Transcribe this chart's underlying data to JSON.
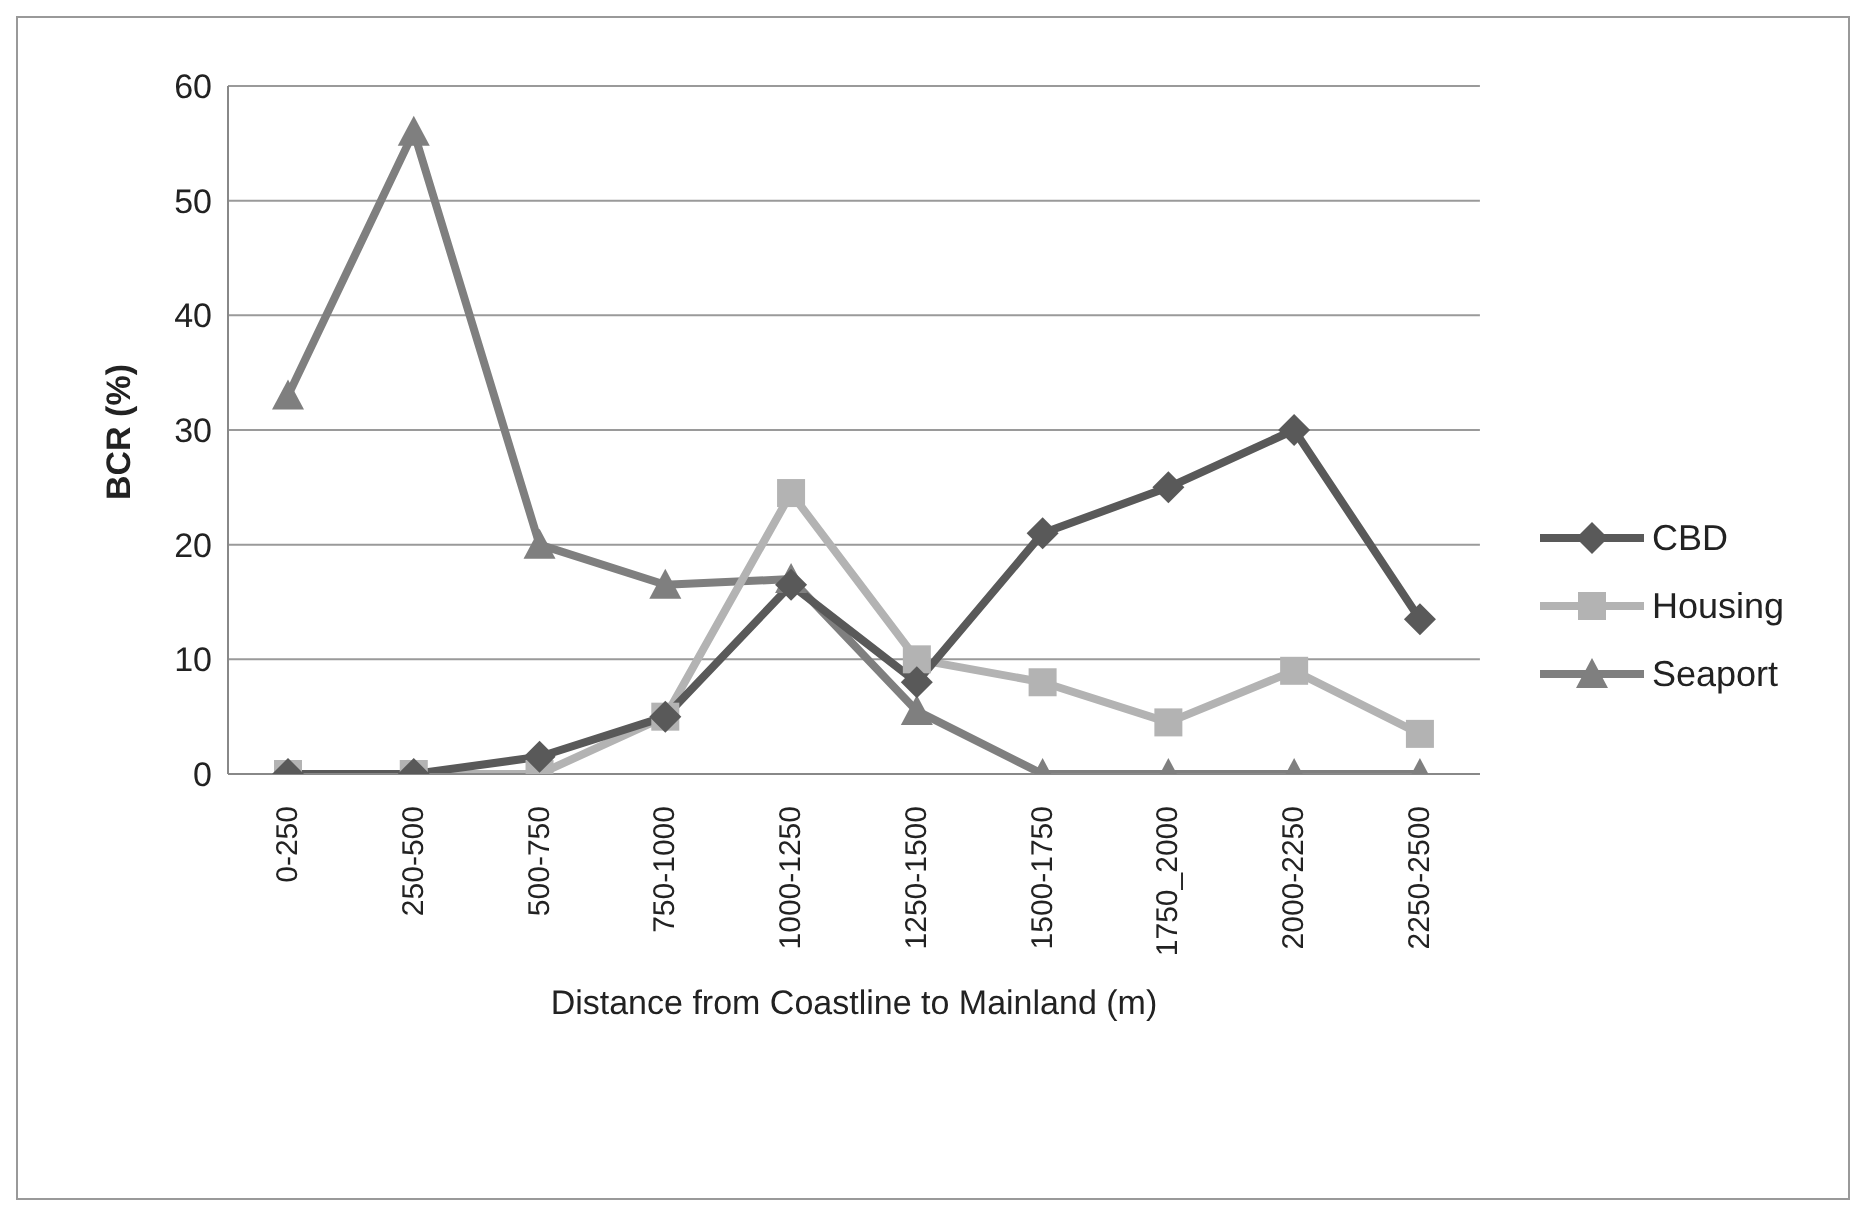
{
  "chart_data": {
    "type": "line",
    "xlabel": "Distance from Coastline to Mainland (m)",
    "ylabel": "BCR (%)",
    "categories": [
      "0-250",
      "250-500",
      "500-750",
      "750-1000",
      "1000-1250",
      "1250-1500",
      "1500-1750",
      "1750_2000",
      "2000-2250",
      "2250-2500"
    ],
    "series": [
      {
        "name": "CBD",
        "color": "#595959",
        "marker": "diamond",
        "values": [
          0,
          0,
          1.5,
          5,
          16.5,
          8,
          21,
          25,
          30,
          13.5
        ]
      },
      {
        "name": "Housing",
        "color": "#b3b3b3",
        "marker": "square",
        "values": [
          0,
          0,
          0,
          5,
          24.5,
          10,
          8,
          4.5,
          9,
          3.5
        ]
      },
      {
        "name": "Seaport",
        "color": "#7f7f7f",
        "marker": "triangle",
        "values": [
          33,
          56,
          20,
          16.5,
          17,
          5.5,
          0,
          0,
          0,
          0
        ]
      }
    ],
    "ylim": [
      0,
      60
    ],
    "yticks": [
      0,
      10,
      20,
      30,
      40,
      50,
      60
    ],
    "grid": "y",
    "legend": "right"
  }
}
